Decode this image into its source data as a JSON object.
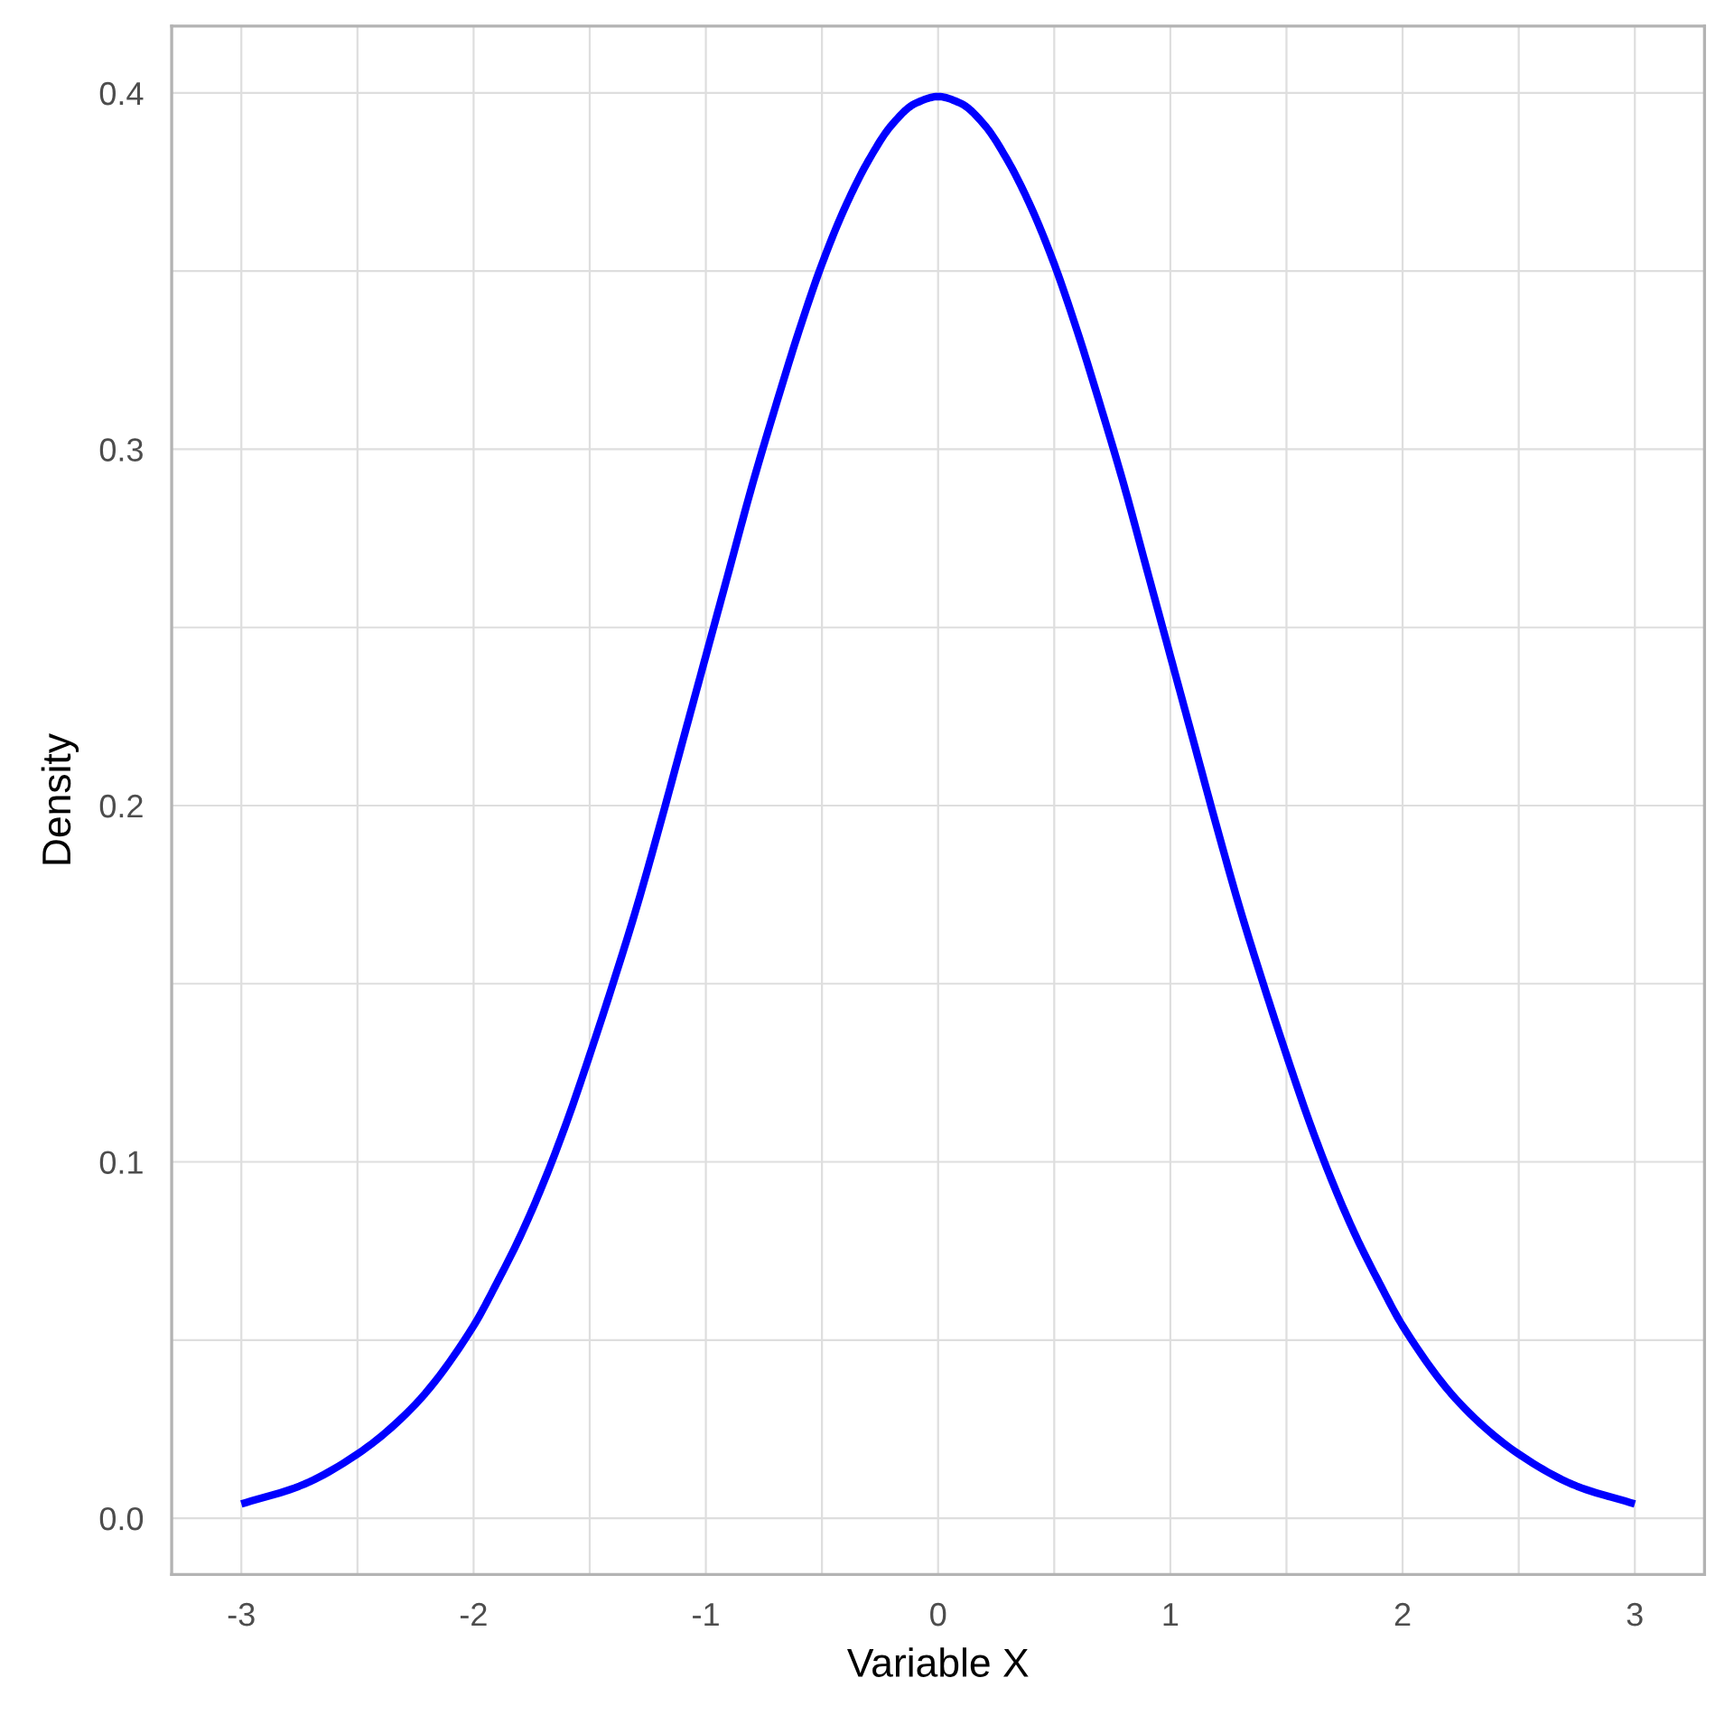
{
  "chart_data": {
    "type": "line",
    "xlabel": "Variable X",
    "ylabel": "Density",
    "x": [
      -3.0,
      -2.75,
      -2.5,
      -2.25,
      -2.0,
      -1.9,
      -1.8,
      -1.7,
      -1.6,
      -1.5,
      -1.4,
      -1.3,
      -1.2,
      -1.1,
      -1.0,
      -0.9,
      -0.8,
      -0.7,
      -0.6,
      -0.5,
      -0.4,
      -0.3,
      -0.2,
      -0.1,
      0.0,
      0.1,
      0.2,
      0.3,
      0.4,
      0.5,
      0.6,
      0.7,
      0.8,
      0.9,
      1.0,
      1.1,
      1.2,
      1.3,
      1.4,
      1.5,
      1.6,
      1.7,
      1.8,
      1.9,
      2.0,
      2.25,
      2.5,
      2.75,
      3.0
    ],
    "series": [
      {
        "color": "#0000ff",
        "values": [
          0.004,
          0.009,
          0.018,
          0.032,
          0.054,
          0.066,
          0.079,
          0.094,
          0.111,
          0.13,
          0.15,
          0.171,
          0.194,
          0.218,
          0.242,
          0.266,
          0.29,
          0.312,
          0.333,
          0.352,
          0.368,
          0.381,
          0.391,
          0.397,
          0.399,
          0.397,
          0.391,
          0.381,
          0.368,
          0.352,
          0.333,
          0.312,
          0.29,
          0.266,
          0.242,
          0.218,
          0.194,
          0.171,
          0.15,
          0.13,
          0.111,
          0.094,
          0.079,
          0.066,
          0.054,
          0.032,
          0.018,
          0.009,
          0.004
        ]
      }
    ],
    "xlim": [
      -3.3,
      3.3
    ],
    "ylim": [
      -0.0158,
      0.4188
    ],
    "xticks": [
      -3,
      -2,
      -1,
      0,
      1,
      2,
      3
    ],
    "yticks": [
      {
        "value": 0,
        "label": "0.0"
      },
      0.1,
      0.2,
      0.3,
      0.4
    ],
    "grid": true,
    "line_style": "solid",
    "marker": "none"
  }
}
